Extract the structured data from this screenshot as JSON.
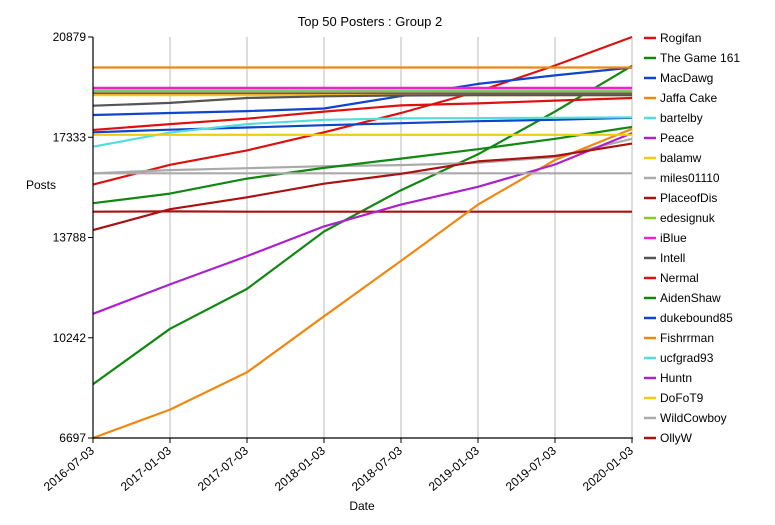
{
  "chart_data": {
    "type": "line",
    "title": "Top 50 Posters : Group 2",
    "xlabel": "Date",
    "ylabel": "Posts",
    "x": [
      "2016-07-03",
      "2017-01-03",
      "2017-07-03",
      "2018-01-03",
      "2018-07-03",
      "2019-01-03",
      "2019-07-03",
      "2020-01-03"
    ],
    "xticks": [
      "2016-07-03",
      "2017-01-03",
      "2017-07-03",
      "2018-01-03",
      "2018-07-03",
      "2019-01-03",
      "2019-07-03",
      "2020-01-03"
    ],
    "yticks": [
      6697,
      10242,
      13788,
      17333,
      20879
    ],
    "ylim": [
      6697,
      20879
    ],
    "grid": "vertical",
    "legend_position": "right",
    "series": [
      {
        "name": "Rogifan",
        "color": "#dd1111",
        "values": [
          15660,
          16360,
          16870,
          17510,
          18190,
          18950,
          19870,
          20879
        ]
      },
      {
        "name": "The Game 161",
        "color": "#118811",
        "values": [
          8600,
          10560,
          11970,
          14000,
          15460,
          16730,
          18240,
          19860
        ]
      },
      {
        "name": "MacDawg",
        "color": "#1144cc",
        "values": [
          18120,
          18190,
          18260,
          18350,
          18790,
          19220,
          19520,
          19800
        ]
      },
      {
        "name": "Jaffa Cake",
        "color": "#ee8811",
        "values": [
          19800,
          19800,
          19800,
          19800,
          19800,
          19800,
          19800,
          19800
        ]
      },
      {
        "name": "bartelby",
        "color": "#55dddd",
        "values": [
          19000,
          19000,
          19000,
          19000,
          19000,
          19000,
          19000,
          19000
        ]
      },
      {
        "name": "Peace",
        "color": "#aa22cc",
        "values": [
          18880,
          18880,
          18880,
          18880,
          18880,
          18880,
          18880,
          18880
        ]
      },
      {
        "name": "balamw",
        "color": "#eecc11",
        "values": [
          18820,
          18820,
          18820,
          18820,
          18820,
          18820,
          18820,
          18820
        ]
      },
      {
        "name": "miles01110",
        "color": "#aaaaaa",
        "values": [
          16060,
          16170,
          16240,
          16310,
          16350,
          16430,
          16630,
          17280
        ]
      },
      {
        "name": "PlaceofDis",
        "color": "#aa1111",
        "values": [
          14700,
          14710,
          14700,
          14700,
          14700,
          14700,
          14700,
          14700
        ]
      },
      {
        "name": "edesignuk",
        "color": "#88cc22",
        "values": [
          18950,
          18950,
          18950,
          18950,
          18950,
          18950,
          18950,
          18950
        ]
      },
      {
        "name": "iBlue",
        "color": "#ee22cc",
        "values": [
          19080,
          19080,
          19080,
          19080,
          19080,
          19080,
          19080,
          19080
        ]
      },
      {
        "name": "Intell",
        "color": "#555555",
        "values": [
          18450,
          18550,
          18720,
          18780,
          18810,
          18820,
          18820,
          18820
        ]
      },
      {
        "name": "Nermal",
        "color": "#dd1111",
        "values": [
          17590,
          17800,
          17990,
          18240,
          18460,
          18530,
          18630,
          18720
        ]
      },
      {
        "name": "AidenShaw",
        "color": "#118811",
        "values": [
          15000,
          15340,
          15870,
          16250,
          16580,
          16910,
          17280,
          17700
        ]
      },
      {
        "name": "dukebound85",
        "color": "#1144cc",
        "values": [
          17510,
          17600,
          17680,
          17760,
          17830,
          17900,
          17950,
          18020
        ]
      },
      {
        "name": "Fishrrman",
        "color": "#ee8811",
        "values": [
          6697,
          7700,
          9020,
          11000,
          12960,
          14950,
          16530,
          17630
        ]
      },
      {
        "name": "ucfgrad93",
        "color": "#55dddd",
        "values": [
          17000,
          17500,
          17800,
          17950,
          18000,
          18010,
          18020,
          18040
        ]
      },
      {
        "name": "Huntn",
        "color": "#aa22cc",
        "values": [
          11090,
          12130,
          13130,
          14180,
          14950,
          15580,
          16370,
          17480
        ]
      },
      {
        "name": "DoFoT9",
        "color": "#eecc11",
        "values": [
          17420,
          17420,
          17420,
          17420,
          17420,
          17420,
          17420,
          17420
        ]
      },
      {
        "name": "WildCowboy",
        "color": "#aaaaaa",
        "values": [
          16060,
          16060,
          16060,
          16060,
          16060,
          16060,
          16060,
          16060
        ]
      },
      {
        "name": "OllyW",
        "color": "#aa1111",
        "values": [
          14050,
          14790,
          15210,
          15690,
          16040,
          16480,
          16670,
          17110
        ]
      }
    ]
  }
}
